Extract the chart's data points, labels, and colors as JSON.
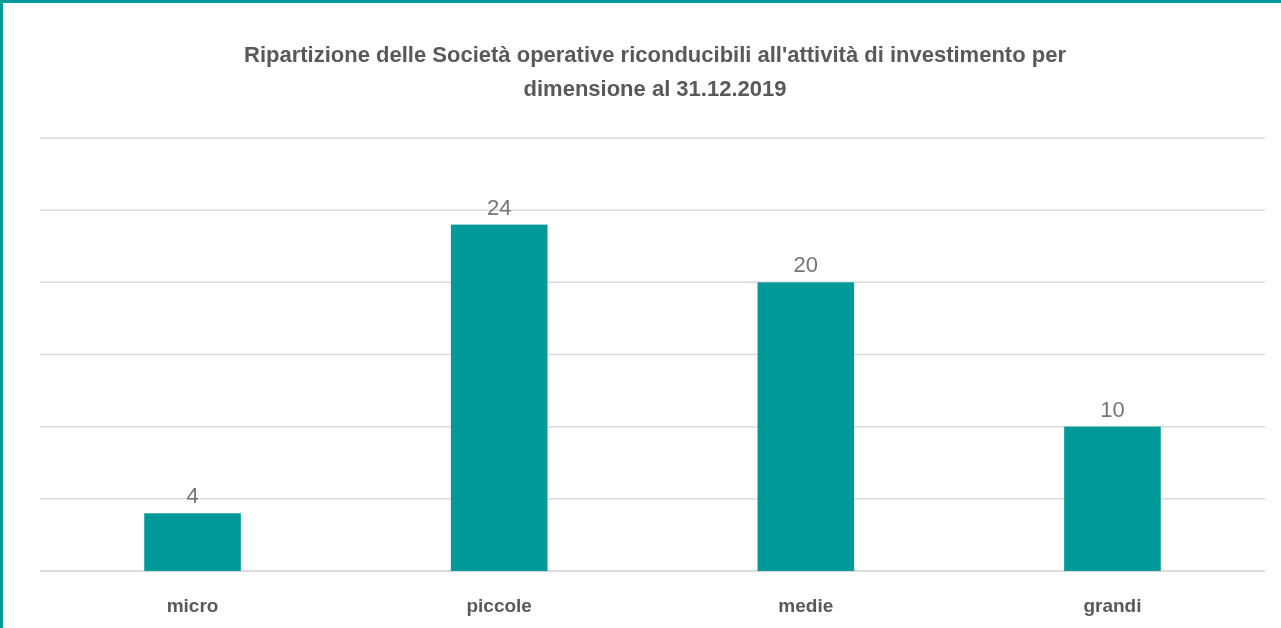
{
  "chart_data": {
    "type": "bar",
    "title": "Ripartizione delle Società operative riconducibili all'attività di investimento per dimensione al 31.12.2019",
    "categories": [
      "micro",
      "piccole",
      "medie",
      "grandi"
    ],
    "values": [
      4,
      24,
      20,
      10
    ],
    "color": "#009999",
    "ylim": [
      0,
      30
    ],
    "yticks": [
      {
        "value": 0,
        "label": null
      },
      {
        "value": 5,
        "label": null
      },
      {
        "value": 10,
        "label": null
      },
      {
        "value": 15,
        "label": null
      },
      {
        "value": 20,
        "label": null
      },
      {
        "value": 25,
        "label": null
      },
      {
        "value": 30,
        "label": null
      }
    ],
    "grid": "y",
    "data_labels": true,
    "tick_labels": "x"
  }
}
